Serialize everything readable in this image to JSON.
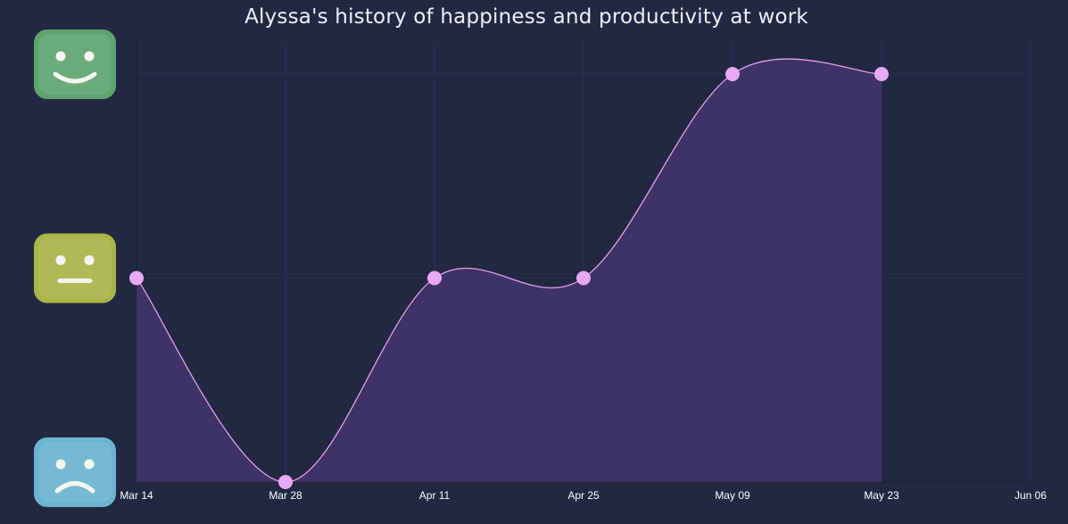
{
  "chart_data": {
    "type": "area",
    "title": "Alyssa's history of happiness and productivity at work",
    "xlabel": "",
    "ylabel": "",
    "x": [
      "Mar 14",
      "Mar 28",
      "Apr 11",
      "Apr 25",
      "May 09",
      "May 23"
    ],
    "x_ticks": [
      "Mar 14",
      "Mar 28",
      "Apr 11",
      "Apr 25",
      "May 09",
      "May 23",
      "Jun 06"
    ],
    "series": [
      {
        "values": [
          2,
          1,
          2,
          2,
          3,
          3
        ]
      }
    ],
    "ylim": [
      1,
      3
    ],
    "y_ticks": [
      {
        "value": 3,
        "icon": "happy-face-icon",
        "color": "#5fa36e"
      },
      {
        "value": 2,
        "icon": "neutral-face-icon",
        "color": "#a9b548"
      },
      {
        "value": 1,
        "icon": "sad-face-icon",
        "color": "#6cb3cf"
      }
    ],
    "grid": true,
    "colors": {
      "background": "#222742",
      "line": "#dfa1ee",
      "fill": "#3f3466",
      "marker": "#e7a9f4"
    }
  }
}
